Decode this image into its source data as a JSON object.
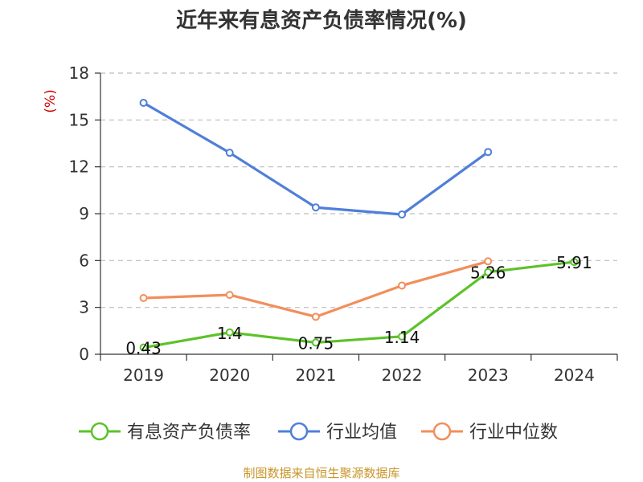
{
  "chart_data": {
    "type": "line",
    "title": "近年来有息资产负债率情况(%)",
    "ylabel": "(%)",
    "categories": [
      "2019",
      "2020",
      "2021",
      "2022",
      "2023",
      "2024"
    ],
    "ylim": [
      0,
      18
    ],
    "yticks": [
      0,
      3,
      6,
      9,
      12,
      15,
      18
    ],
    "grid": true,
    "legend_position": "bottom",
    "series": [
      {
        "name": "有息资产负债率",
        "color": "#5cc22a",
        "values": [
          0.43,
          1.4,
          0.75,
          1.14,
          5.26,
          5.91
        ],
        "labels": [
          "0.43",
          "1.4",
          "0.75",
          "1.14",
          "5.26",
          "5.91"
        ]
      },
      {
        "name": "行业均值",
        "color": "#4f7fd9",
        "values": [
          16.1,
          12.9,
          9.4,
          8.95,
          12.95,
          null
        ]
      },
      {
        "name": "行业中位数",
        "color": "#f28e5c",
        "values": [
          3.6,
          3.8,
          2.4,
          4.4,
          5.95,
          null
        ]
      }
    ]
  },
  "source": "制图数据来自恒生聚源数据库"
}
